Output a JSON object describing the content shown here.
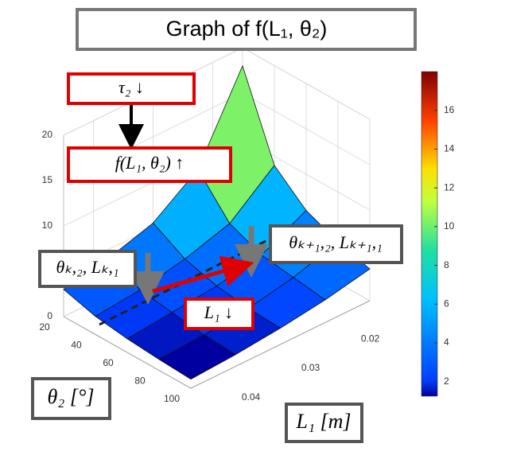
{
  "chart_data": {
    "type": "surface",
    "title": "Graph of f(L₁, θ₂)",
    "x_label": "L₁ [m]",
    "y_label": "θ₂ [°]",
    "x": [
      0.015,
      0.0225,
      0.03,
      0.0375,
      0.045
    ],
    "y": [
      20,
      40,
      60,
      80,
      100
    ],
    "z": [
      [
        18,
        9,
        5.5,
        4,
        3
      ],
      [
        9,
        5,
        3.5,
        2.5,
        2
      ],
      [
        6,
        3.5,
        2.5,
        2,
        1.5
      ],
      [
        4.5,
        3,
        2,
        1.5,
        1.2
      ],
      [
        3.5,
        2.5,
        1.8,
        1.3,
        1
      ]
    ],
    "xlim": [
      0.015,
      0.045
    ],
    "xticks": [
      0.02,
      0.03,
      0.04
    ],
    "ylim": [
      20,
      100
    ],
    "yticks": [
      20,
      40,
      60,
      80,
      100
    ],
    "zlim": [
      0,
      20
    ],
    "zticks": [
      0,
      5,
      10,
      15,
      20
    ],
    "colormap": "jet",
    "clim": [
      1.25,
      18
    ],
    "cticks": [
      2,
      4,
      6,
      8,
      10,
      12,
      14,
      16
    ],
    "grid": true,
    "annotations": [
      "τ₂ ↓",
      "f(L₁, θ₂) ↑",
      "θₖ,₂, Lₖ,₁",
      "θₖ₊₁,₂, Lₖ₊₁,₁",
      "L₁ ↓"
    ]
  }
}
